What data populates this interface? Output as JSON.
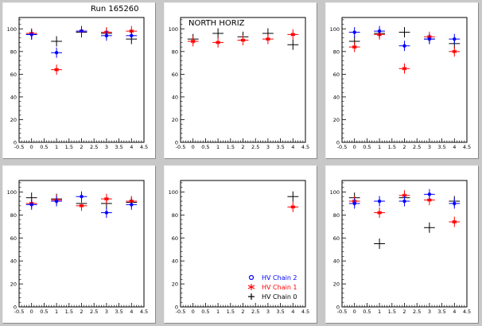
{
  "colors": {
    "HV Chain 2": "#0000ff",
    "HV Chain 1": "#ff0000",
    "HV Chain 0": "#000000"
  },
  "run_label": "Run 165260",
  "chart_data": [
    {
      "type": "scatter",
      "title": "",
      "pad_title": "",
      "xlim": [
        -0.5,
        4.5
      ],
      "ylim": [
        0,
        110
      ],
      "xticks": [
        "-0.5",
        "0",
        "0.5",
        "1",
        "1.5",
        "2",
        "2.5",
        "3",
        "3.5",
        "4",
        "4.5"
      ],
      "yticks": [
        "0",
        "20",
        "40",
        "60",
        "80",
        "100"
      ],
      "series": [
        {
          "name": "HV Chain 2",
          "points": [
            [
              0,
              95
            ],
            [
              1,
              79
            ],
            [
              2,
              98
            ],
            [
              3,
              94
            ],
            [
              4,
              94
            ]
          ]
        },
        {
          "name": "HV Chain 1",
          "points": [
            [
              0,
              96
            ],
            [
              1,
              64
            ],
            [
              2,
              98
            ],
            [
              3,
              97
            ],
            [
              4,
              98
            ]
          ]
        },
        {
          "name": "HV Chain 0",
          "points": [
            [
              0,
              95
            ],
            [
              1,
              89
            ],
            [
              2,
              97
            ],
            [
              3,
              96
            ],
            [
              4,
              91
            ]
          ]
        }
      ]
    },
    {
      "type": "scatter",
      "title": "NORTH HORIZ",
      "pad_title": "",
      "xlim": [
        -0.5,
        4.5
      ],
      "ylim": [
        0,
        110
      ],
      "xticks": [
        "-0.5",
        "0",
        "0.5",
        "1",
        "1.5",
        "2",
        "2.5",
        "3",
        "3.5",
        "4",
        "4.5"
      ],
      "yticks": [
        "0",
        "20",
        "40",
        "60",
        "80",
        "100"
      ],
      "series": [
        {
          "name": "HV Chain 2",
          "points": []
        },
        {
          "name": "HV Chain 1",
          "points": [
            [
              0,
              89
            ],
            [
              1,
              88
            ],
            [
              2,
              90
            ],
            [
              3,
              91
            ],
            [
              4,
              95
            ]
          ]
        },
        {
          "name": "HV Chain 0",
          "points": [
            [
              0,
              91
            ],
            [
              1,
              96
            ],
            [
              2,
              93
            ],
            [
              3,
              96
            ],
            [
              4,
              86
            ]
          ]
        }
      ]
    },
    {
      "type": "scatter",
      "title": "",
      "pad_title": "",
      "xlim": [
        -0.5,
        4.5
      ],
      "ylim": [
        0,
        110
      ],
      "xticks": [
        "-0.5",
        "0",
        "0.5",
        "1",
        "1.5",
        "2",
        "2.5",
        "3",
        "3.5",
        "4",
        "4.5"
      ],
      "yticks": [
        "0",
        "20",
        "40",
        "60",
        "80",
        "100"
      ],
      "series": [
        {
          "name": "HV Chain 2",
          "points": [
            [
              0,
              97
            ],
            [
              1,
              98
            ],
            [
              2,
              85
            ],
            [
              3,
              91
            ],
            [
              4,
              91
            ]
          ]
        },
        {
          "name": "HV Chain 1",
          "points": [
            [
              0,
              84
            ],
            [
              1,
              95
            ],
            [
              2,
              65
            ],
            [
              3,
              93
            ],
            [
              4,
              80
            ]
          ]
        },
        {
          "name": "HV Chain 0",
          "points": [
            [
              0,
              89
            ],
            [
              1,
              96
            ],
            [
              2,
              97
            ],
            [
              3,
              91
            ],
            [
              4,
              87
            ]
          ]
        }
      ]
    },
    {
      "type": "scatter",
      "title": "",
      "pad_title": "",
      "xlim": [
        -0.5,
        4.5
      ],
      "ylim": [
        0,
        110
      ],
      "xticks": [
        "-0.5",
        "0",
        "0.5",
        "1",
        "1.5",
        "2",
        "2.5",
        "3",
        "3.5",
        "4",
        "4.5"
      ],
      "yticks": [
        "0",
        "20",
        "40",
        "60",
        "80",
        "100"
      ],
      "series": [
        {
          "name": "HV Chain 2",
          "points": [
            [
              0,
              89
            ],
            [
              1,
              92
            ],
            [
              2,
              96
            ],
            [
              3,
              82
            ],
            [
              4,
              89
            ]
          ]
        },
        {
          "name": "HV Chain 1",
          "points": [
            [
              0,
              90
            ],
            [
              1,
              93
            ],
            [
              2,
              88
            ],
            [
              3,
              94
            ],
            [
              4,
              92
            ]
          ]
        },
        {
          "name": "HV Chain 0",
          "points": [
            [
              0,
              95
            ],
            [
              1,
              94
            ],
            [
              2,
              90
            ],
            [
              3,
              90
            ],
            [
              4,
              91
            ]
          ]
        }
      ]
    },
    {
      "type": "scatter",
      "title": "",
      "pad_title": "",
      "xlim": [
        -0.5,
        4.5
      ],
      "ylim": [
        0,
        110
      ],
      "xticks": [
        "-0.5",
        "0",
        "0.5",
        "1",
        "1.5",
        "2",
        "2.5",
        "3",
        "3.5",
        "4",
        "4.5"
      ],
      "yticks": [
        "0",
        "20",
        "40",
        "60",
        "80",
        "100"
      ],
      "legend": [
        "HV Chain 2",
        "HV Chain 1",
        "HV Chain 0"
      ],
      "legend_position": "bottom-right",
      "series": [
        {
          "name": "HV Chain 2",
          "points": []
        },
        {
          "name": "HV Chain 1",
          "points": [
            [
              4,
              87
            ]
          ]
        },
        {
          "name": "HV Chain 0",
          "points": [
            [
              4,
              96
            ]
          ]
        }
      ]
    },
    {
      "type": "scatter",
      "title": "",
      "pad_title": "",
      "xlim": [
        -0.5,
        4.5
      ],
      "ylim": [
        0,
        110
      ],
      "xticks": [
        "-0.5",
        "0",
        "0.5",
        "1",
        "1.5",
        "2",
        "2.5",
        "3",
        "3.5",
        "4",
        "4.5"
      ],
      "yticks": [
        "0",
        "20",
        "40",
        "60",
        "80",
        "100"
      ],
      "series": [
        {
          "name": "HV Chain 2",
          "points": [
            [
              0,
              90
            ],
            [
              1,
              92
            ],
            [
              2,
              92
            ],
            [
              3,
              98
            ],
            [
              4,
              90
            ]
          ]
        },
        {
          "name": "HV Chain 1",
          "points": [
            [
              0,
              92
            ],
            [
              1,
              82
            ],
            [
              2,
              97
            ],
            [
              3,
              93
            ],
            [
              4,
              74
            ]
          ]
        },
        {
          "name": "HV Chain 0",
          "points": [
            [
              0,
              95
            ],
            [
              1,
              55
            ],
            [
              2,
              95
            ],
            [
              3,
              69
            ],
            [
              4,
              92
            ]
          ]
        }
      ]
    }
  ]
}
